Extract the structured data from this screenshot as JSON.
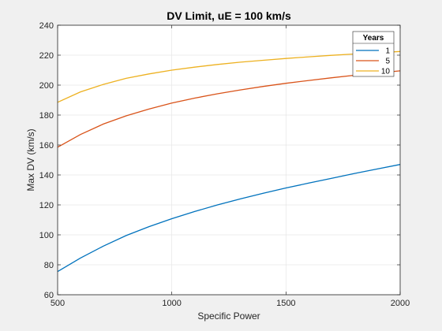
{
  "chart_data": {
    "type": "line",
    "title": "DV Limit, uE = 100 km/s",
    "xlabel": "Specific Power",
    "ylabel": "Max DV (km/s)",
    "xlim": [
      500,
      2000
    ],
    "ylim": [
      60,
      240
    ],
    "xticks": [
      500,
      1000,
      1500,
      2000
    ],
    "yticks": [
      60,
      80,
      100,
      120,
      140,
      160,
      180,
      200,
      220,
      240
    ],
    "grid": true,
    "legend": {
      "title": "Years",
      "placement": "top-right"
    },
    "series": [
      {
        "name": "1",
        "color": "#0072bd",
        "x": [
          500,
          600,
          700,
          800,
          900,
          1000,
          1100,
          1200,
          1300,
          1400,
          1500,
          1600,
          1700,
          1800,
          1900,
          2000
        ],
        "y": [
          75.5,
          84.5,
          92.5,
          99.5,
          105.5,
          110.8,
          115.6,
          120.0,
          124.0,
          127.8,
          131.3,
          134.6,
          137.8,
          141.0,
          144.0,
          147.0
        ]
      },
      {
        "name": "5",
        "color": "#d95319",
        "x": [
          500,
          600,
          700,
          800,
          900,
          1000,
          1100,
          1200,
          1300,
          1400,
          1500,
          1600,
          1700,
          1800,
          1900,
          2000
        ],
        "y": [
          158.5,
          167.0,
          174.0,
          179.5,
          184.0,
          188.0,
          191.3,
          194.2,
          196.8,
          199.1,
          201.2,
          203.1,
          204.9,
          206.6,
          208.1,
          209.5
        ]
      },
      {
        "name": "10",
        "color": "#edb120",
        "x": [
          500,
          600,
          700,
          800,
          900,
          1000,
          1100,
          1200,
          1300,
          1400,
          1500,
          1600,
          1700,
          1800,
          1900,
          2000
        ],
        "y": [
          188.5,
          195.5,
          200.5,
          204.5,
          207.5,
          210.0,
          212.0,
          213.8,
          215.3,
          216.6,
          217.8,
          218.9,
          219.9,
          220.8,
          221.6,
          222.5
        ]
      }
    ]
  }
}
